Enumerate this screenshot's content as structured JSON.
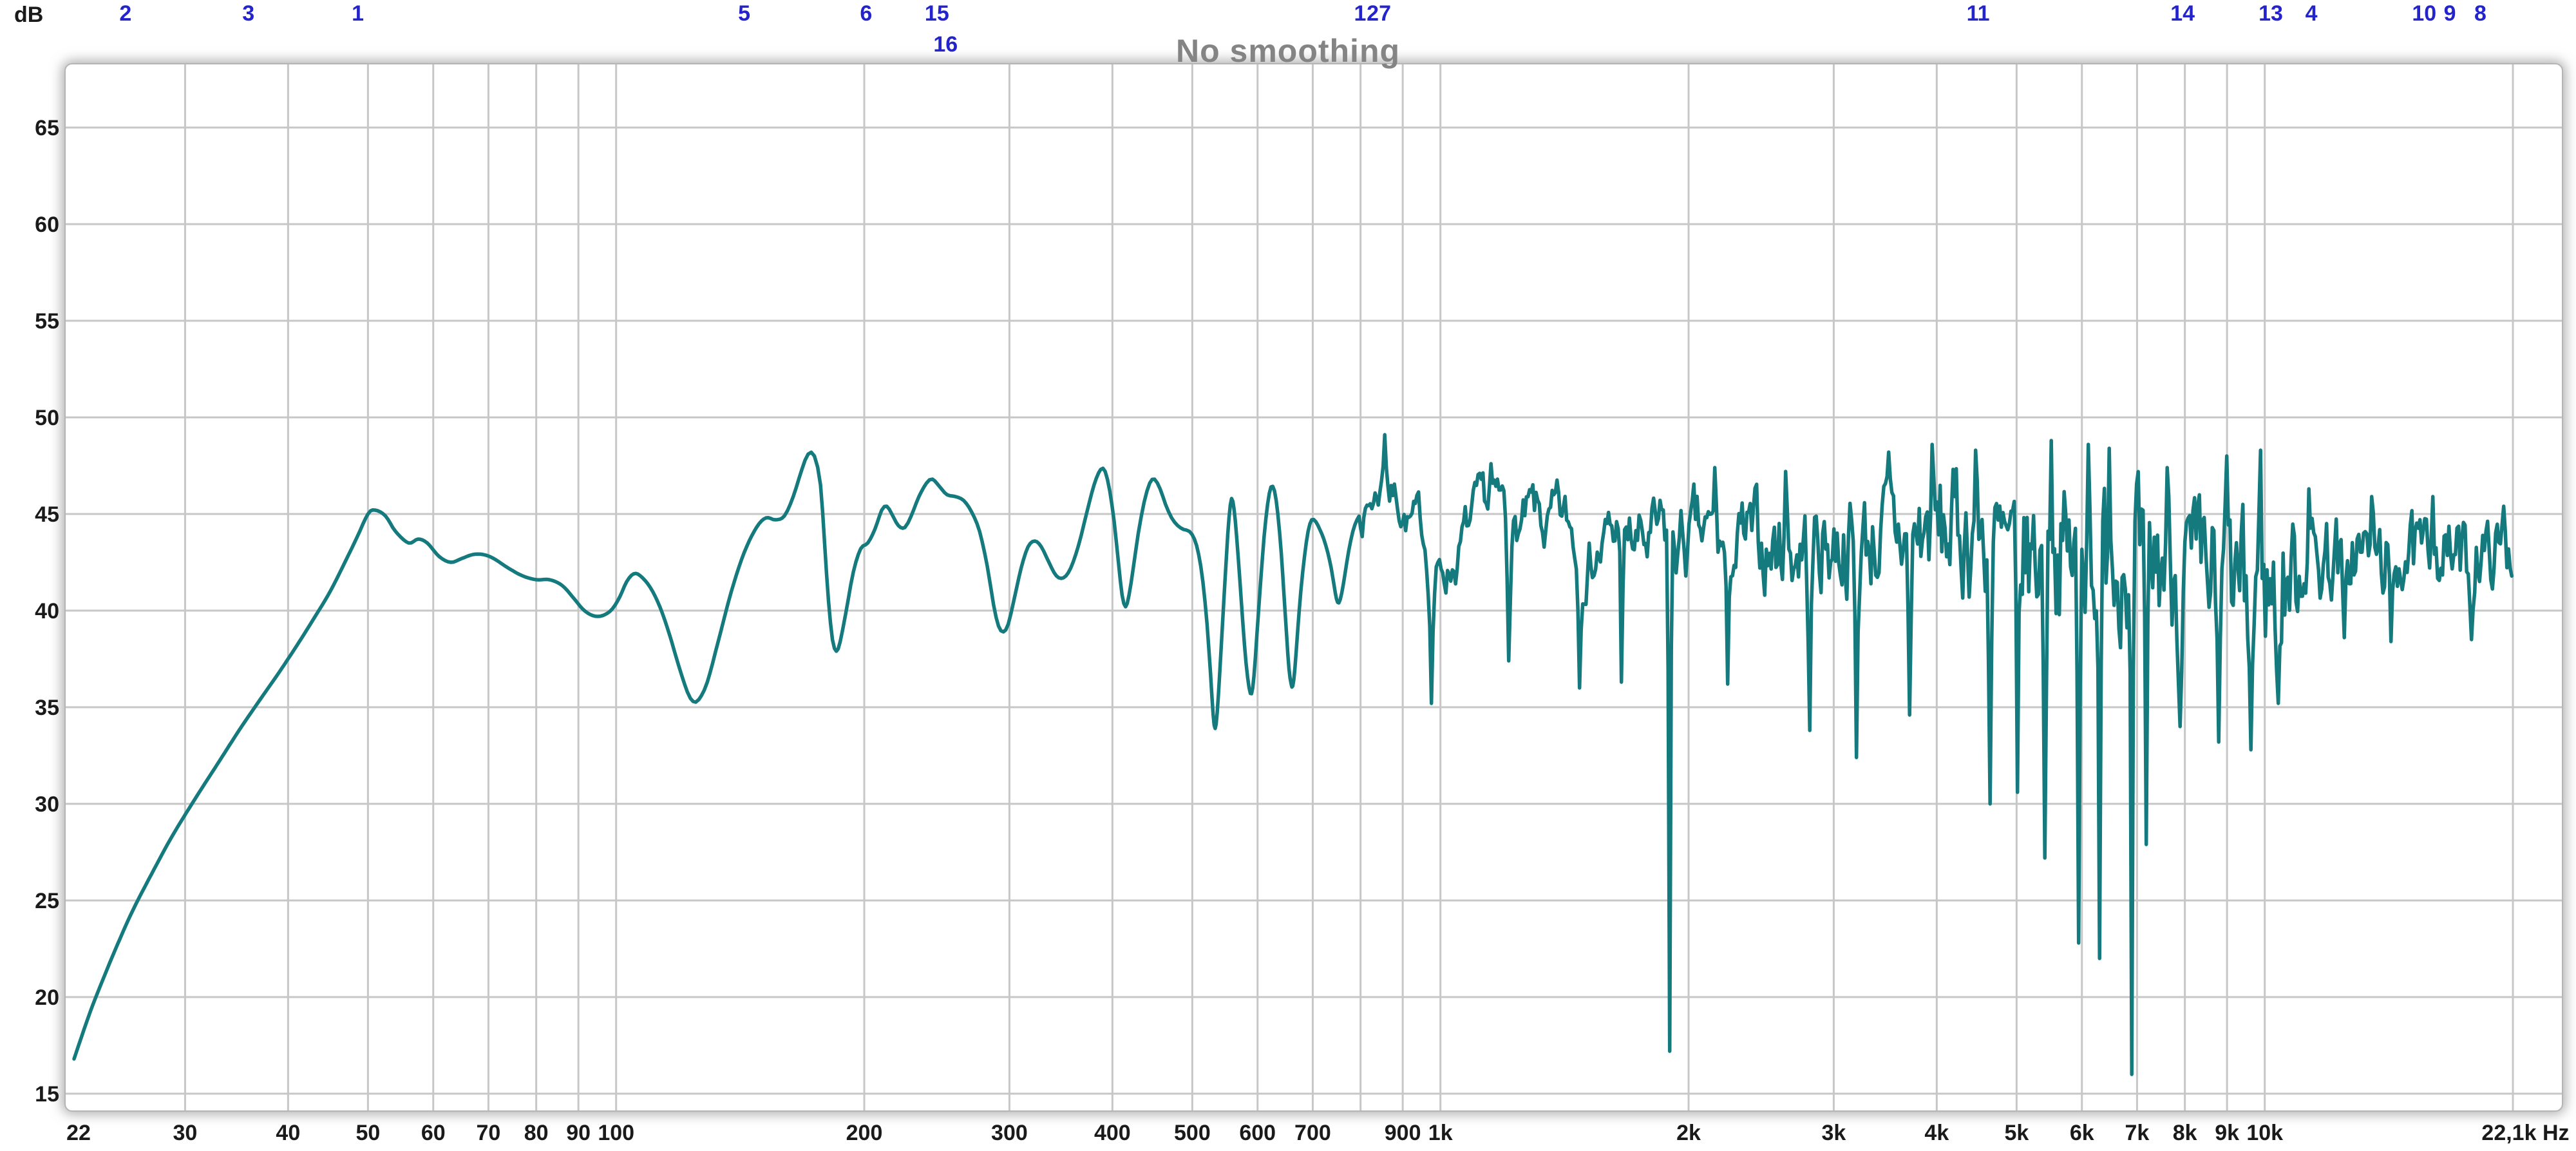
{
  "header": {
    "title": "No smoothing",
    "title_color": "#848484",
    "y_axis_unit": "dB",
    "marker_color": "#2424cc",
    "eq_filter_markers": [
      {
        "label": "2",
        "hz": 25.4,
        "row": 1
      },
      {
        "label": "3",
        "hz": 35.8,
        "row": 1
      },
      {
        "label": "1",
        "hz": 48.6,
        "row": 1
      },
      {
        "label": "5",
        "hz": 143,
        "row": 1
      },
      {
        "label": "6",
        "hz": 201,
        "row": 1
      },
      {
        "label": "15",
        "hz": 245,
        "row": 1
      },
      {
        "label": "16",
        "hz": 251,
        "row": 2
      },
      {
        "label": "1",
        "hz": 799,
        "row": 1
      },
      {
        "label": "27",
        "hz": 842,
        "row": 1
      },
      {
        "label": "11",
        "hz": 4490,
        "row": 1
      },
      {
        "label": "14",
        "hz": 7950,
        "row": 1
      },
      {
        "label": "13",
        "hz": 10170,
        "row": 1
      },
      {
        "label": "4",
        "hz": 11390,
        "row": 1
      },
      {
        "label": "10",
        "hz": 15610,
        "row": 1
      },
      {
        "label": "9",
        "hz": 16770,
        "row": 1
      },
      {
        "label": "8",
        "hz": 18260,
        "row": 1
      }
    ]
  },
  "chart_data": {
    "type": "line",
    "title": "No smoothing",
    "xlabel": "Hz",
    "ylabel": "dB",
    "x_scale": "log",
    "x_range_hz": [
      22,
      22100
    ],
    "curve_end_hz": 20000,
    "ylim": [
      15,
      65
    ],
    "grid": true,
    "grid_color": "#c7c7c7",
    "curve_color": "#157a7d",
    "tick_color": "#1a1a1a",
    "y_ticks": [
      65,
      60,
      55,
      50,
      45,
      40,
      35,
      30,
      25,
      20,
      15
    ],
    "x_gridlines_hz": [
      30,
      40,
      50,
      60,
      70,
      80,
      90,
      100,
      200,
      300,
      400,
      500,
      600,
      700,
      800,
      900,
      1000,
      2000,
      3000,
      4000,
      5000,
      6000,
      7000,
      8000,
      9000,
      10000,
      20000
    ],
    "x_tick_labels": [
      {
        "hz": 22,
        "label": "22"
      },
      {
        "hz": 30,
        "label": "30"
      },
      {
        "hz": 40,
        "label": "40"
      },
      {
        "hz": 50,
        "label": "50"
      },
      {
        "hz": 60,
        "label": "60"
      },
      {
        "hz": 70,
        "label": "70"
      },
      {
        "hz": 80,
        "label": "80"
      },
      {
        "hz": 90,
        "label": "90"
      },
      {
        "hz": 100,
        "label": "100"
      },
      {
        "hz": 200,
        "label": "200"
      },
      {
        "hz": 300,
        "label": "300"
      },
      {
        "hz": 400,
        "label": "400"
      },
      {
        "hz": 500,
        "label": "500"
      },
      {
        "hz": 600,
        "label": "600"
      },
      {
        "hz": 700,
        "label": "700"
      },
      {
        "hz": 900,
        "label": "900"
      },
      {
        "hz": 1000,
        "label": "1k"
      },
      {
        "hz": 2000,
        "label": "2k"
      },
      {
        "hz": 3000,
        "label": "3k"
      },
      {
        "hz": 4000,
        "label": "4k"
      },
      {
        "hz": 5000,
        "label": "5k"
      },
      {
        "hz": 6000,
        "label": "6k"
      },
      {
        "hz": 7000,
        "label": "7k"
      },
      {
        "hz": 8000,
        "label": "8k"
      },
      {
        "hz": 9000,
        "label": "9k"
      },
      {
        "hz": 10000,
        "label": "10k"
      },
      {
        "hz": 22100,
        "label": "22,1k Hz",
        "end": true
      }
    ],
    "lf_points_hz_db": [
      [
        22,
        16.8
      ],
      [
        23,
        19.2
      ],
      [
        24,
        21.2
      ],
      [
        25,
        23.0
      ],
      [
        26,
        24.6
      ],
      [
        27.5,
        26.6
      ],
      [
        29,
        28.4
      ],
      [
        31,
        30.4
      ],
      [
        33,
        32.2
      ],
      [
        35,
        33.9
      ],
      [
        37,
        35.4
      ],
      [
        39,
        36.8
      ],
      [
        41,
        38.2
      ],
      [
        43,
        39.6
      ],
      [
        45,
        41.0
      ],
      [
        47,
        42.6
      ],
      [
        48.5,
        43.8
      ],
      [
        50,
        45.0
      ],
      [
        51,
        45.2
      ],
      [
        52.5,
        44.9
      ],
      [
        54,
        44.1
      ],
      [
        56,
        43.5
      ],
      [
        57.5,
        43.7
      ],
      [
        59,
        43.5
      ],
      [
        61,
        42.8
      ],
      [
        63,
        42.5
      ],
      [
        65,
        42.7
      ],
      [
        67,
        42.9
      ],
      [
        69,
        42.9
      ],
      [
        71,
        42.7
      ],
      [
        74,
        42.2
      ],
      [
        77,
        41.8
      ],
      [
        80,
        41.6
      ],
      [
        83,
        41.6
      ],
      [
        86,
        41.3
      ],
      [
        89,
        40.6
      ],
      [
        91,
        40.1
      ],
      [
        93,
        39.8
      ],
      [
        95,
        39.7
      ],
      [
        97,
        39.8
      ],
      [
        99,
        40.1
      ],
      [
        101,
        40.7
      ],
      [
        103,
        41.5
      ],
      [
        105,
        41.9
      ],
      [
        107,
        41.8
      ],
      [
        110,
        41.2
      ],
      [
        113,
        40.2
      ],
      [
        116,
        38.8
      ],
      [
        119,
        37.2
      ],
      [
        122,
        35.8
      ],
      [
        124,
        35.3
      ],
      [
        126,
        35.4
      ],
      [
        129,
        36.3
      ],
      [
        133,
        38.4
      ],
      [
        138,
        41.0
      ],
      [
        143,
        43.0
      ],
      [
        148,
        44.3
      ],
      [
        152,
        44.8
      ],
      [
        156,
        44.7
      ],
      [
        160,
        44.9
      ],
      [
        164,
        45.9
      ],
      [
        168,
        47.3
      ],
      [
        171,
        48.1
      ],
      [
        174,
        48.0
      ],
      [
        177,
        46.5
      ],
      [
        179,
        43.5
      ],
      [
        181,
        40.5
      ],
      [
        183,
        38.5
      ],
      [
        185,
        37.9
      ],
      [
        187,
        38.4
      ],
      [
        190,
        39.9
      ],
      [
        194,
        42.0
      ],
      [
        198,
        43.2
      ],
      [
        202,
        43.5
      ],
      [
        206,
        44.2
      ],
      [
        210,
        45.2
      ],
      [
        213,
        45.4
      ],
      [
        216,
        45.0
      ],
      [
        220,
        44.4
      ],
      [
        224,
        44.3
      ],
      [
        228,
        44.9
      ],
      [
        233,
        45.9
      ],
      [
        238,
        46.6
      ],
      [
        242,
        46.8
      ],
      [
        247,
        46.4
      ],
      [
        252,
        46.0
      ],
      [
        258,
        45.9
      ],
      [
        264,
        45.7
      ],
      [
        270,
        45.1
      ],
      [
        276,
        44.1
      ],
      [
        282,
        42.3
      ],
      [
        287,
        40.3
      ],
      [
        291,
        39.2
      ],
      [
        295,
        38.9
      ],
      [
        299,
        39.3
      ],
      [
        304,
        40.6
      ],
      [
        310,
        42.2
      ],
      [
        316,
        43.3
      ],
      [
        322,
        43.6
      ],
      [
        328,
        43.3
      ],
      [
        335,
        42.5
      ],
      [
        342,
        41.8
      ],
      [
        349,
        41.7
      ],
      [
        356,
        42.2
      ],
      [
        364,
        43.4
      ],
      [
        372,
        45.0
      ],
      [
        380,
        46.5
      ],
      [
        387,
        47.3
      ],
      [
        392,
        47.2
      ],
      [
        397,
        46.2
      ],
      [
        402,
        44.6
      ],
      [
        407,
        42.4
      ],
      [
        411,
        40.8
      ],
      [
        415,
        40.2
      ],
      [
        419,
        40.8
      ],
      [
        424,
        42.2
      ],
      [
        430,
        44.0
      ],
      [
        437,
        45.6
      ],
      [
        444,
        46.6
      ],
      [
        450,
        46.8
      ],
      [
        457,
        46.3
      ],
      [
        464,
        45.5
      ],
      [
        472,
        44.8
      ],
      [
        480,
        44.4
      ],
      [
        488,
        44.2
      ],
      [
        496,
        44.1
      ],
      [
        503,
        43.7
      ],
      [
        509,
        42.9
      ],
      [
        515,
        41.5
      ],
      [
        521,
        39.3
      ],
      [
        526,
        36.8
      ],
      [
        530,
        34.6
      ],
      [
        533,
        33.9
      ],
      [
        536,
        34.7
      ],
      [
        540,
        36.9
      ],
      [
        545,
        39.9
      ],
      [
        550,
        42.8
      ],
      [
        554,
        44.8
      ],
      [
        558,
        45.8
      ],
      [
        562,
        45.2
      ],
      [
        566,
        43.8
      ],
      [
        571,
        41.6
      ],
      [
        576,
        39.3
      ],
      [
        581,
        37.3
      ],
      [
        586,
        36.0
      ],
      [
        590,
        35.7
      ],
      [
        594,
        36.6
      ],
      [
        599,
        38.8
      ],
      [
        605,
        41.4
      ],
      [
        611,
        43.8
      ],
      [
        617,
        45.5
      ],
      [
        623,
        46.4
      ],
      [
        629,
        46.2
      ],
      [
        635,
        45.0
      ],
      [
        641,
        43.0
      ],
      [
        646,
        40.8
      ],
      [
        651,
        38.6
      ],
      [
        655,
        37.0
      ],
      [
        659,
        36.2
      ],
      [
        662,
        36.1
      ],
      [
        666,
        37.0
      ],
      [
        671,
        38.9
      ],
      [
        677,
        41.0
      ],
      [
        684,
        42.8
      ],
      [
        691,
        44.1
      ],
      [
        698,
        44.7
      ],
      [
        706,
        44.6
      ],
      [
        714,
        44.2
      ],
      [
        722,
        43.7
      ],
      [
        730,
        43.0
      ],
      [
        737,
        42.2
      ],
      [
        743,
        41.3
      ],
      [
        748,
        40.6
      ],
      [
        753,
        40.4
      ],
      [
        759,
        40.9
      ],
      [
        766,
        41.9
      ],
      [
        774,
        43.1
      ],
      [
        783,
        44.1
      ],
      [
        792,
        44.7
      ],
      [
        800,
        45.0
      ]
    ],
    "hf_mean_hz_db": [
      [
        800,
        45.0
      ],
      [
        830,
        46.0
      ],
      [
        860,
        47.0
      ],
      [
        900,
        45.8
      ],
      [
        950,
        43.6
      ],
      [
        1000,
        41.8
      ],
      [
        1060,
        43.6
      ],
      [
        1150,
        44.6
      ],
      [
        1250,
        44.2
      ],
      [
        1400,
        43.6
      ],
      [
        1600,
        43.4
      ],
      [
        1800,
        43.2
      ],
      [
        2000,
        43.4
      ],
      [
        2300,
        43.2
      ],
      [
        2600,
        43.2
      ],
      [
        3000,
        43.6
      ],
      [
        3400,
        43.8
      ],
      [
        3800,
        44.0
      ],
      [
        4200,
        44.2
      ],
      [
        4600,
        43.4
      ],
      [
        5000,
        42.8
      ],
      [
        5500,
        42.8
      ],
      [
        6000,
        43.0
      ],
      [
        6500,
        43.0
      ],
      [
        7000,
        42.6
      ],
      [
        7500,
        42.4
      ],
      [
        8000,
        42.2
      ],
      [
        8600,
        41.6
      ],
      [
        9200,
        41.2
      ],
      [
        9800,
        40.8
      ],
      [
        10400,
        41.2
      ],
      [
        11000,
        42.2
      ],
      [
        12000,
        42.8
      ],
      [
        13000,
        43.0
      ],
      [
        14000,
        42.8
      ],
      [
        15500,
        43.0
      ],
      [
        17000,
        42.9
      ],
      [
        18500,
        42.9
      ],
      [
        20000,
        43.2
      ]
    ],
    "hf_noise_amp_hz_db": [
      [
        800,
        2.0
      ],
      [
        1000,
        2.4
      ],
      [
        1400,
        2.7
      ],
      [
        2000,
        3.0
      ],
      [
        2600,
        3.2
      ],
      [
        3200,
        3.4
      ],
      [
        4000,
        3.8
      ],
      [
        4800,
        4.1
      ],
      [
        5600,
        4.4
      ],
      [
        6400,
        4.6
      ],
      [
        7200,
        4.5
      ],
      [
        8000,
        4.3
      ],
      [
        9000,
        4.7
      ],
      [
        10000,
        4.6
      ],
      [
        11000,
        3.4
      ],
      [
        12000,
        2.8
      ],
      [
        13500,
        2.5
      ],
      [
        15000,
        2.3
      ],
      [
        17000,
        2.1
      ],
      [
        19000,
        2.0
      ],
      [
        20000,
        2.0
      ]
    ],
    "hf_correlation_hz": [
      [
        800,
        0.88
      ],
      [
        1500,
        0.8
      ],
      [
        2500,
        0.65
      ],
      [
        4000,
        0.5
      ],
      [
        6000,
        0.42
      ],
      [
        20000,
        0.38
      ]
    ],
    "hf_extremes_hz_db_w": [
      [
        857,
        49.1,
        8
      ],
      [
        976,
        35.2,
        7
      ],
      [
        1150,
        47.6,
        7
      ],
      [
        1210,
        37.4,
        7
      ],
      [
        1475,
        36.0,
        7
      ],
      [
        1650,
        47.8,
        7
      ],
      [
        1660,
        36.3,
        7
      ],
      [
        1898,
        17.2,
        5
      ],
      [
        2150,
        47.4,
        7
      ],
      [
        2230,
        36.2,
        7
      ],
      [
        2620,
        47.2,
        7
      ],
      [
        2800,
        33.8,
        7
      ],
      [
        3200,
        32.4,
        7
      ],
      [
        3500,
        48.2,
        6
      ],
      [
        3700,
        34.6,
        7
      ],
      [
        3950,
        48.6,
        6
      ],
      [
        4450,
        48.3,
        6
      ],
      [
        4640,
        30.0,
        6
      ],
      [
        5020,
        30.6,
        6
      ],
      [
        5420,
        27.2,
        6
      ],
      [
        5500,
        48.8,
        6
      ],
      [
        5950,
        22.8,
        6
      ],
      [
        6100,
        48.6,
        6
      ],
      [
        6300,
        22.0,
        6
      ],
      [
        6480,
        48.4,
        6
      ],
      [
        6900,
        16.0,
        5
      ],
      [
        7170,
        27.9,
        6
      ],
      [
        7600,
        47.4,
        6
      ],
      [
        7900,
        34.0,
        8
      ],
      [
        8800,
        33.2,
        8
      ],
      [
        9000,
        48.0,
        6
      ],
      [
        9600,
        32.8,
        8
      ],
      [
        9900,
        48.3,
        6
      ],
      [
        10400,
        35.2,
        9
      ],
      [
        11300,
        46.3,
        7
      ],
      [
        12500,
        38.6,
        9
      ],
      [
        13500,
        45.9,
        7
      ],
      [
        14200,
        38.4,
        8
      ],
      [
        16000,
        45.9,
        7
      ],
      [
        17800,
        38.5,
        8
      ],
      [
        19500,
        45.4,
        7
      ]
    ],
    "noise_seed": 7
  }
}
